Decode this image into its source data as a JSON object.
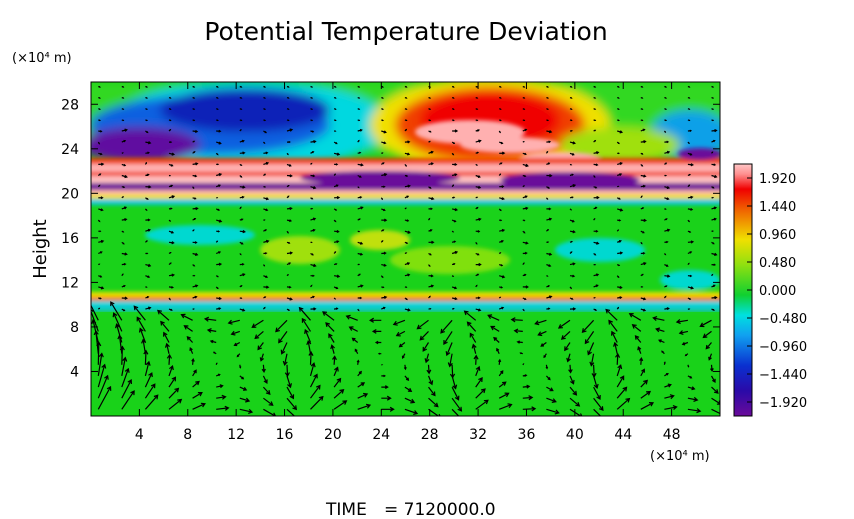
{
  "chart_data": {
    "type": "heatmap",
    "title": "Potential Temperature Deviation",
    "x_unit": "(×10⁴ m)",
    "y_unit": "(×10⁴ m)",
    "ylabel": "Height",
    "xlim": [
      0,
      52
    ],
    "ylim": [
      0,
      30
    ],
    "x_ticks": [
      4,
      8,
      12,
      16,
      20,
      24,
      28,
      32,
      36,
      40,
      44,
      48
    ],
    "y_ticks": [
      4,
      8,
      12,
      16,
      20,
      24,
      28
    ],
    "colorbar": {
      "min": -2.16,
      "max": 2.16,
      "labels": [
        "1.920",
        "1.440",
        "0.960",
        "0.480",
        "0.000",
        "−0.480",
        "−0.960",
        "−1.440",
        "−1.920"
      ],
      "values": [
        1.92,
        1.44,
        0.96,
        0.48,
        0.0,
        -0.48,
        -0.96,
        -1.44,
        -1.92
      ],
      "colors": [
        "#6a0a9a",
        "#0a1ab0",
        "#1a6ae8",
        "#00d0e8",
        "#19d419",
        "#b0e010",
        "#f0d000",
        "#f02000",
        "#ffb0b0"
      ]
    },
    "overlay": "wind vector arrows",
    "time_label": "TIME",
    "time_value": "= 7120000.0"
  }
}
